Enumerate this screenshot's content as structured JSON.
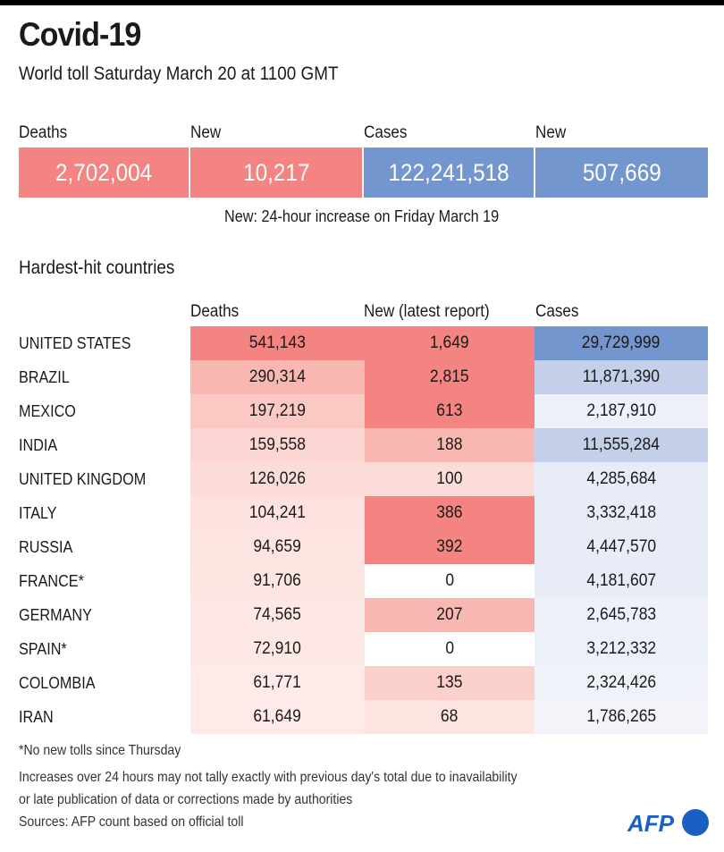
{
  "header": {
    "title": "Covid-19",
    "subtitle": "World toll Saturday March 20 at 1100 GMT"
  },
  "summary": [
    {
      "label": "Deaths",
      "value": "2,702,004",
      "color": "#f48481"
    },
    {
      "label": "New",
      "value": "10,217",
      "color": "#f48481"
    },
    {
      "label": "Cases",
      "value": "122,241,518",
      "color": "#7496cf"
    },
    {
      "label": "New",
      "value": "507,669",
      "color": "#7496cf"
    }
  ],
  "summary_note": "New: 24-hour increase on Friday March 19",
  "section_title": "Hardest-hit countries",
  "chart_data": {
    "type": "table",
    "title": "Hardest-hit countries",
    "columns": [
      "Deaths",
      "New (latest report)",
      "Cases"
    ],
    "rows": [
      {
        "country": "UNITED STATES",
        "deaths": "541,143",
        "new": "1,649",
        "cases": "29,729,999",
        "colors": [
          "#f48481",
          "#f48481",
          "#7496cf"
        ]
      },
      {
        "country": "BRAZIL",
        "deaths": "290,314",
        "new": "2,815",
        "cases": "11,871,390",
        "colors": [
          "#f8b7b1",
          "#f48481",
          "#c4cfea"
        ]
      },
      {
        "country": "MEXICO",
        "deaths": "197,219",
        "new": "613",
        "cases": "2,187,910",
        "colors": [
          "#fac9c4",
          "#f48481",
          "#eef1f9"
        ]
      },
      {
        "country": "INDIA",
        "deaths": "159,558",
        "new": "188",
        "cases": "11,555,284",
        "colors": [
          "#fbd5d1",
          "#f8b7b1",
          "#c4cfea"
        ]
      },
      {
        "country": "UNITED KINGDOM",
        "deaths": "126,026",
        "new": "100",
        "cases": "4,285,684",
        "colors": [
          "#fcdcd9",
          "#fcdcd9",
          "#e8ecf7"
        ]
      },
      {
        "country": "ITALY",
        "deaths": "104,241",
        "new": "386",
        "cases": "3,332,418",
        "colors": [
          "#fde2df",
          "#f48481",
          "#e8ecf7"
        ]
      },
      {
        "country": "RUSSIA",
        "deaths": "94,659",
        "new": "392",
        "cases": "4,447,570",
        "colors": [
          "#fde4e1",
          "#f48481",
          "#e8ecf7"
        ]
      },
      {
        "country": "FRANCE*",
        "deaths": "91,706",
        "new": "0",
        "cases": "4,181,607",
        "colors": [
          "#fde5e2",
          "#ffffff",
          "#e8ecf7"
        ]
      },
      {
        "country": "GERMANY",
        "deaths": "74,565",
        "new": "207",
        "cases": "2,645,783",
        "colors": [
          "#fde8e5",
          "#f8b7b1",
          "#eef1f9"
        ]
      },
      {
        "country": "SPAIN*",
        "deaths": "72,910",
        "new": "0",
        "cases": "3,212,332",
        "colors": [
          "#fde8e5",
          "#ffffff",
          "#ecf0f8"
        ]
      },
      {
        "country": "COLOMBIA",
        "deaths": "61,771",
        "new": "135",
        "cases": "2,324,426",
        "colors": [
          "#feebe9",
          "#fbcfca",
          "#eff2f9"
        ]
      },
      {
        "country": "IRAN",
        "deaths": "61,649",
        "new": "68",
        "cases": "1,786,265",
        "colors": [
          "#feebe9",
          "#fde4e1",
          "#f2f4fa"
        ]
      }
    ]
  },
  "footnotes": {
    "asterisk": "*No new tolls since Thursday",
    "line1": "Increases over 24 hours may not tally exactly with previous day's total due to inavailability",
    "line2": "or late publication of data or corrections made by authorities",
    "sources": "Sources: AFP count based on official toll"
  },
  "logo": {
    "text": "AFP",
    "color": "#1a5fc4"
  }
}
